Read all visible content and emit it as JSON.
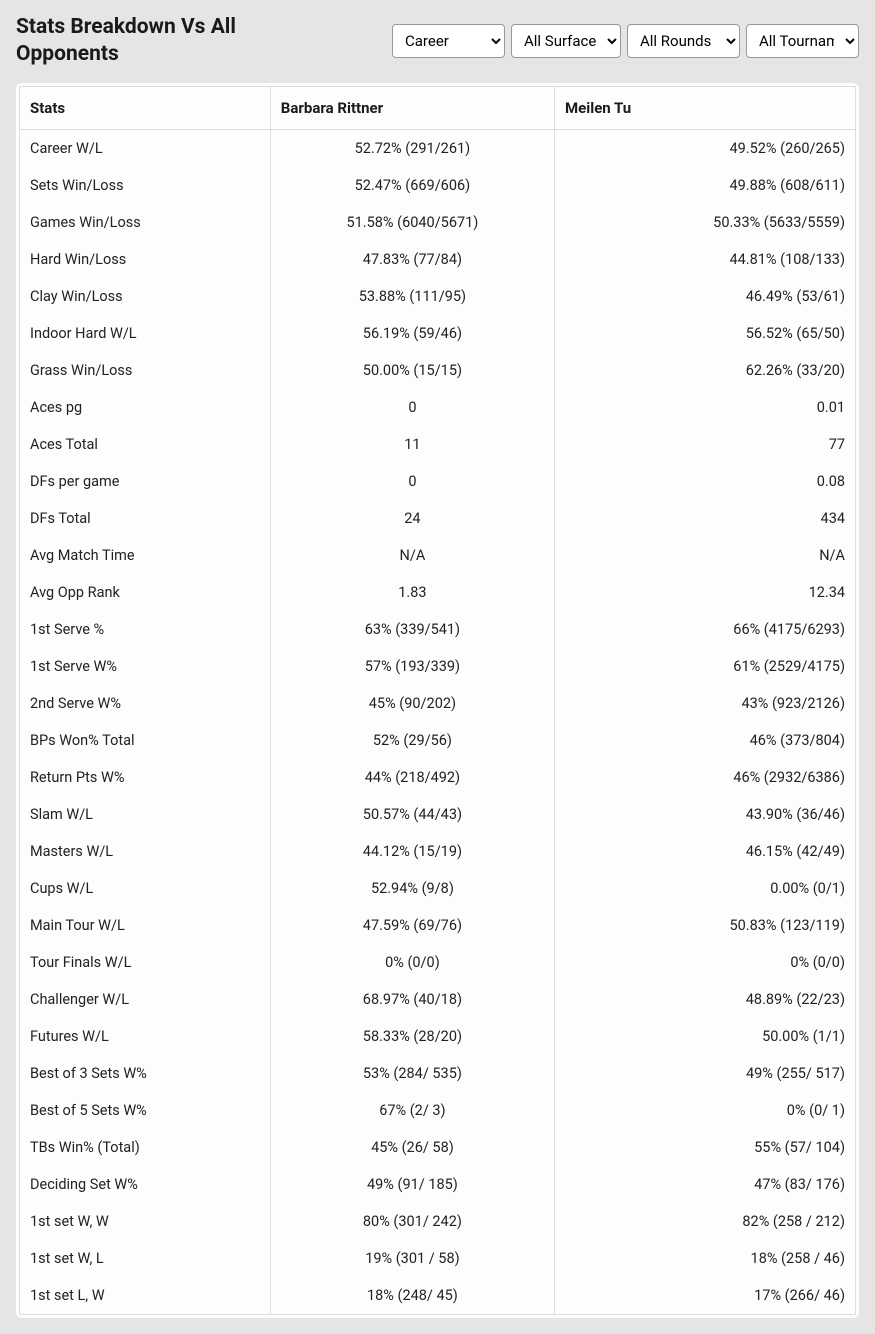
{
  "header": {
    "title": "Stats Breakdown Vs All Opponents",
    "filters": {
      "career": {
        "selected": "Career",
        "options": [
          "Career"
        ]
      },
      "surface": {
        "selected": "All Surfaces",
        "options": [
          "All Surfaces"
        ]
      },
      "rounds": {
        "selected": "All Rounds",
        "options": [
          "All Rounds"
        ]
      },
      "tournaments": {
        "selected": "All Tournaments",
        "options": [
          "All Tournaments"
        ]
      }
    }
  },
  "table": {
    "columns": [
      "Stats",
      "Barbara Rittner",
      "Meilen Tu"
    ],
    "rows": [
      {
        "label": "Career W/L",
        "p1": "52.72% (291/261)",
        "p2": "49.52% (260/265)"
      },
      {
        "label": "Sets Win/Loss",
        "p1": "52.47% (669/606)",
        "p2": "49.88% (608/611)"
      },
      {
        "label": "Games Win/Loss",
        "p1": "51.58% (6040/5671)",
        "p2": "50.33% (5633/5559)"
      },
      {
        "label": "Hard Win/Loss",
        "p1": "47.83% (77/84)",
        "p2": "44.81% (108/133)"
      },
      {
        "label": "Clay Win/Loss",
        "p1": "53.88% (111/95)",
        "p2": "46.49% (53/61)"
      },
      {
        "label": "Indoor Hard W/L",
        "p1": "56.19% (59/46)",
        "p2": "56.52% (65/50)"
      },
      {
        "label": "Grass Win/Loss",
        "p1": "50.00% (15/15)",
        "p2": "62.26% (33/20)"
      },
      {
        "label": "Aces pg",
        "p1": "0",
        "p2": "0.01"
      },
      {
        "label": "Aces Total",
        "p1": "11",
        "p2": "77"
      },
      {
        "label": "DFs per game",
        "p1": "0",
        "p2": "0.08"
      },
      {
        "label": "DFs Total",
        "p1": "24",
        "p2": "434"
      },
      {
        "label": "Avg Match Time",
        "p1": "N/A",
        "p2": "N/A"
      },
      {
        "label": "Avg Opp Rank",
        "p1": "1.83",
        "p2": "12.34"
      },
      {
        "label": "1st Serve %",
        "p1": "63% (339/541)",
        "p2": "66% (4175/6293)"
      },
      {
        "label": "1st Serve W%",
        "p1": "57% (193/339)",
        "p2": "61% (2529/4175)"
      },
      {
        "label": "2nd Serve W%",
        "p1": "45% (90/202)",
        "p2": "43% (923/2126)"
      },
      {
        "label": "BPs Won% Total",
        "p1": "52% (29/56)",
        "p2": "46% (373/804)"
      },
      {
        "label": "Return Pts W%",
        "p1": "44% (218/492)",
        "p2": "46% (2932/6386)"
      },
      {
        "label": "Slam W/L",
        "p1": "50.57% (44/43)",
        "p2": "43.90% (36/46)"
      },
      {
        "label": "Masters W/L",
        "p1": "44.12% (15/19)",
        "p2": "46.15% (42/49)"
      },
      {
        "label": "Cups W/L",
        "p1": "52.94% (9/8)",
        "p2": "0.00% (0/1)"
      },
      {
        "label": "Main Tour W/L",
        "p1": "47.59% (69/76)",
        "p2": "50.83% (123/119)"
      },
      {
        "label": "Tour Finals W/L",
        "p1": "0% (0/0)",
        "p2": "0% (0/0)"
      },
      {
        "label": "Challenger W/L",
        "p1": "68.97% (40/18)",
        "p2": "48.89% (22/23)"
      },
      {
        "label": "Futures W/L",
        "p1": "58.33% (28/20)",
        "p2": "50.00% (1/1)"
      },
      {
        "label": "Best of 3 Sets W%",
        "p1": "53% (284/ 535)",
        "p2": "49% (255/ 517)"
      },
      {
        "label": "Best of 5 Sets W%",
        "p1": "67% (2/ 3)",
        "p2": "0% (0/ 1)"
      },
      {
        "label": "TBs Win% (Total)",
        "p1": "45% (26/ 58)",
        "p2": "55% (57/ 104)"
      },
      {
        "label": "Deciding Set W%",
        "p1": "49% (91/ 185)",
        "p2": "47% (83/ 176)"
      },
      {
        "label": "1st set W, W",
        "p1": "80% (301/ 242)",
        "p2": "82% (258 / 212)"
      },
      {
        "label": "1st set W, L",
        "p1": "19% (301 / 58)",
        "p2": "18% (258 / 46)"
      },
      {
        "label": "1st set L, W",
        "p1": "18% (248/ 45)",
        "p2": "17% (266/ 46)"
      }
    ]
  },
  "styling": {
    "background_color": "#e5e5e5",
    "table_bg": "#fdfdfd",
    "border_color": "#ddd",
    "text_color": "#1a1a1a",
    "header_fontsize": 21,
    "th_fontsize": 15,
    "td_fontsize": 14.5
  }
}
